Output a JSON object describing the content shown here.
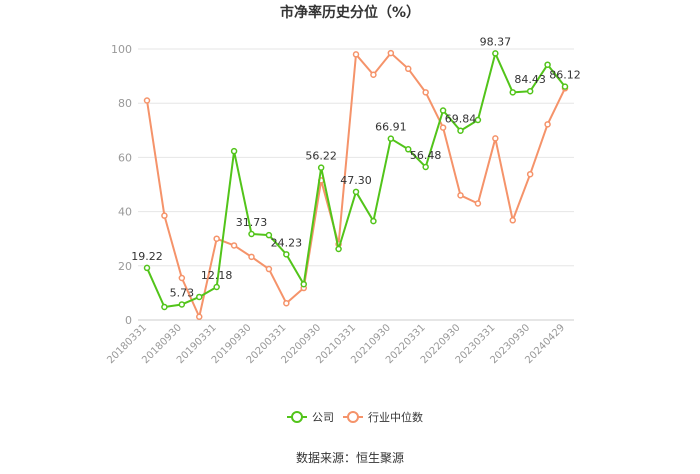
{
  "chart_data": {
    "type": "line",
    "title": "市净率历史分位（%）",
    "source": "数据来源：恒生聚源",
    "ylim": [
      0,
      100
    ],
    "yticks": [
      0,
      20,
      40,
      60,
      80,
      100
    ],
    "grid": true,
    "legend_position": "bottom",
    "x": [
      "20180331",
      "20180630",
      "20180930",
      "20181231",
      "20190331",
      "20190630",
      "20190930",
      "20191231",
      "20200331",
      "20200630",
      "20200930",
      "20201231",
      "20210331",
      "20210630",
      "20210930",
      "20211231",
      "20220331",
      "20220630",
      "20220930",
      "20221231",
      "20230331",
      "20230630",
      "20230930",
      "20231231",
      "20240429"
    ],
    "xtick_labels": [
      "20180331",
      "20180930",
      "20190331",
      "20190930",
      "20200331",
      "20200930",
      "20210331",
      "20210930",
      "20220331",
      "20220930",
      "20230331",
      "20230930",
      "20240429"
    ],
    "series": [
      {
        "name": "公司",
        "color": "#52c41a",
        "values": [
          19.22,
          4.8,
          5.73,
          8.5,
          12.18,
          62.3,
          31.73,
          31.3,
          24.23,
          13.2,
          56.22,
          26.2,
          47.3,
          36.5,
          66.91,
          63.0,
          56.48,
          77.3,
          69.84,
          73.8,
          98.37,
          84.0,
          84.43,
          94.2,
          86.12
        ],
        "labels": {
          "0": "19.22",
          "2": "5.73",
          "4": "12.18",
          "6": "31.73",
          "8": "24.23",
          "10": "56.22",
          "12": "47.30",
          "14": "66.91",
          "16": "56.48",
          "18": "69.84",
          "20": "98.37",
          "22": "84.43",
          "24": "86.12"
        }
      },
      {
        "name": "行业中位数",
        "color": "#f5936a",
        "values": [
          81.0,
          38.5,
          15.5,
          1.2,
          30.0,
          27.5,
          23.3,
          18.8,
          6.2,
          11.8,
          51.5,
          28.0,
          98.0,
          90.5,
          98.5,
          92.7,
          84.0,
          71.0,
          46.0,
          43.0,
          67.0,
          36.8,
          53.8,
          72.2,
          85.5
        ]
      }
    ]
  }
}
